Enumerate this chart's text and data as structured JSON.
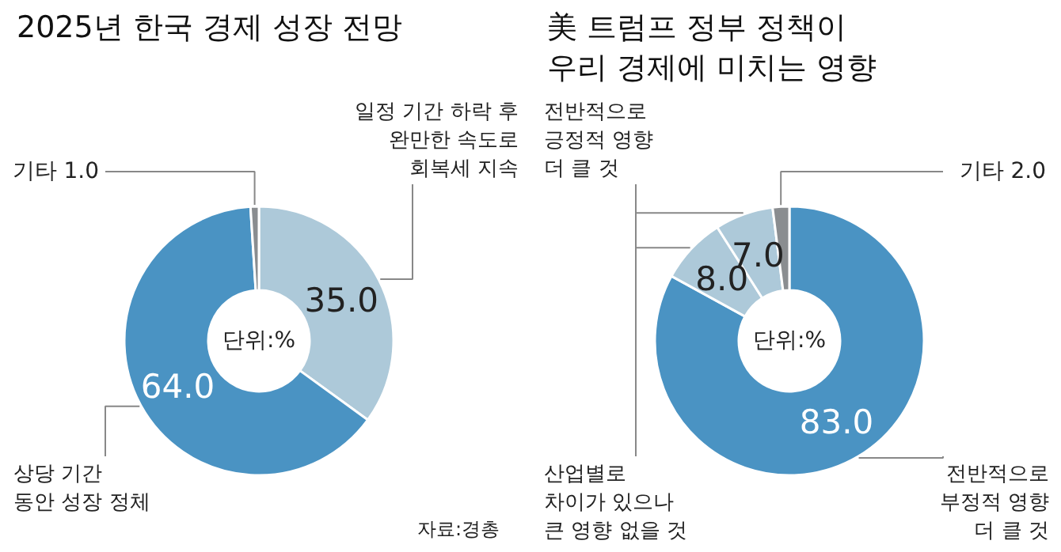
{
  "chart_data": [
    {
      "type": "donut",
      "title": "2025년 한국 경제 성장 전망",
      "categories": [
        "일정 기간 하락 후\n완만한 속도로\n회복세 지속",
        "상당 기간\n동안 성장 정체",
        "기타"
      ],
      "values": [
        35,
        64,
        1
      ],
      "value_labels": [
        "35.0",
        "64.0",
        "1.0"
      ],
      "colors": [
        "#adc9d9",
        "#4a93c3",
        "#8a8d90"
      ],
      "annotations": [
        "단위:%",
        "자료:경총"
      ]
    },
    {
      "type": "donut",
      "title": "美 트럼프 정부 정책이\n우리 경제에 미치는 영향",
      "categories": [
        "전반적으로\n부정적 영향\n더 클 것",
        "전반적으로\n긍정적 영향\n더 클 것",
        "산업별로\n차이가 있으나\n큰 영향 없을 것",
        "기타"
      ],
      "values": [
        83,
        8,
        7,
        2
      ],
      "value_labels": [
        "83.0",
        "8.0",
        "7.0",
        "2.0"
      ],
      "colors": [
        "#4a93c3",
        "#adc9d9",
        "#adc9d9",
        "#8a8d90"
      ],
      "annotations": [
        "단위:%"
      ]
    }
  ]
}
